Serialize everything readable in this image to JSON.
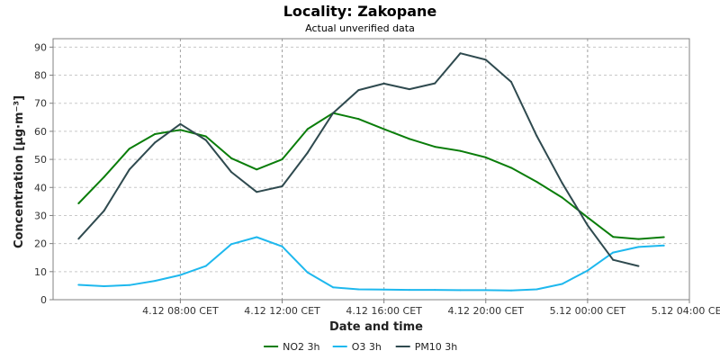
{
  "chart_data": {
    "type": "line",
    "title": "Locality: Zakopane",
    "subtitle": "Actual unverified data",
    "xlabel": "Date and time",
    "ylabel": "Concentration [µg·m⁻³]",
    "ylim": [
      0,
      93
    ],
    "yticks": [
      0,
      10,
      20,
      30,
      40,
      50,
      60,
      70,
      80,
      90
    ],
    "xlim": [
      "4.12 03:00 CET",
      "5.12 04:00 CET"
    ],
    "xticks": [
      {
        "hour": 8,
        "label": "4.12 08:00 CET"
      },
      {
        "hour": 12,
        "label": "4.12 12:00 CET"
      },
      {
        "hour": 16,
        "label": "4.12 16:00 CET"
      },
      {
        "hour": 20,
        "label": "4.12 20:00 CET"
      },
      {
        "hour": 24,
        "label": "5.12 00:00 CET"
      },
      {
        "hour": 28,
        "label": "5.12 04:00 CET"
      }
    ],
    "grid": true,
    "legend_position": "bottom",
    "series": [
      {
        "name": "NO2 3h",
        "color": "#0a7d0a",
        "points": [
          {
            "hour": 4,
            "value": 34.3
          },
          {
            "hour": 5,
            "value": 43.7
          },
          {
            "hour": 6,
            "value": 53.8
          },
          {
            "hour": 7,
            "value": 59
          },
          {
            "hour": 8,
            "value": 60.5
          },
          {
            "hour": 9,
            "value": 58.2
          },
          {
            "hour": 10,
            "value": 50.4
          },
          {
            "hour": 11,
            "value": 46.4
          },
          {
            "hour": 12,
            "value": 50
          },
          {
            "hour": 13,
            "value": 60.8
          },
          {
            "hour": 14,
            "value": 66.5
          },
          {
            "hour": 15,
            "value": 64.4
          },
          {
            "hour": 16,
            "value": 60.8
          },
          {
            "hour": 17,
            "value": 57.3
          },
          {
            "hour": 18,
            "value": 54.5
          },
          {
            "hour": 19,
            "value": 53
          },
          {
            "hour": 20,
            "value": 50.7
          },
          {
            "hour": 21,
            "value": 47
          },
          {
            "hour": 22,
            "value": 42
          },
          {
            "hour": 23,
            "value": 36.4
          },
          {
            "hour": 24,
            "value": 29.3
          },
          {
            "hour": 25,
            "value": 22.4
          },
          {
            "hour": 26,
            "value": 21.6
          },
          {
            "hour": 27,
            "value": 22.3
          }
        ]
      },
      {
        "name": "O3 3h",
        "color": "#1eb8ee",
        "points": [
          {
            "hour": 4,
            "value": 5.3
          },
          {
            "hour": 5,
            "value": 4.8
          },
          {
            "hour": 6,
            "value": 5.2
          },
          {
            "hour": 7,
            "value": 6.7
          },
          {
            "hour": 8,
            "value": 8.8
          },
          {
            "hour": 9,
            "value": 12
          },
          {
            "hour": 10,
            "value": 19.8
          },
          {
            "hour": 11,
            "value": 22.3
          },
          {
            "hour": 12,
            "value": 19
          },
          {
            "hour": 13,
            "value": 9.7
          },
          {
            "hour": 14,
            "value": 4.4
          },
          {
            "hour": 15,
            "value": 3.7
          },
          {
            "hour": 16,
            "value": 3.6
          },
          {
            "hour": 17,
            "value": 3.5
          },
          {
            "hour": 18,
            "value": 3.5
          },
          {
            "hour": 19,
            "value": 3.4
          },
          {
            "hour": 20,
            "value": 3.4
          },
          {
            "hour": 21,
            "value": 3.3
          },
          {
            "hour": 22,
            "value": 3.7
          },
          {
            "hour": 23,
            "value": 5.6
          },
          {
            "hour": 24,
            "value": 10.4
          },
          {
            "hour": 25,
            "value": 16.8
          },
          {
            "hour": 26,
            "value": 18.8
          },
          {
            "hour": 27,
            "value": 19.3
          }
        ]
      },
      {
        "name": "PM10 3h",
        "color": "#2f4a4f",
        "points": [
          {
            "hour": 4,
            "value": 21.7
          },
          {
            "hour": 5,
            "value": 31.7
          },
          {
            "hour": 6,
            "value": 46.4
          },
          {
            "hour": 7,
            "value": 56
          },
          {
            "hour": 8,
            "value": 62.6
          },
          {
            "hour": 9,
            "value": 56.9
          },
          {
            "hour": 10,
            "value": 45.5
          },
          {
            "hour": 11,
            "value": 38.4
          },
          {
            "hour": 12,
            "value": 40.4
          },
          {
            "hour": 13,
            "value": 52.4
          },
          {
            "hour": 14,
            "value": 66.5
          },
          {
            "hour": 15,
            "value": 74.7
          },
          {
            "hour": 16,
            "value": 77
          },
          {
            "hour": 17,
            "value": 75
          },
          {
            "hour": 18,
            "value": 77.1
          },
          {
            "hour": 19,
            "value": 87.8
          },
          {
            "hour": 20,
            "value": 85.5
          },
          {
            "hour": 21,
            "value": 77.6
          },
          {
            "hour": 22,
            "value": 58.4
          },
          {
            "hour": 23,
            "value": 41.6
          },
          {
            "hour": 24,
            "value": 26.5
          },
          {
            "hour": 25,
            "value": 14.2
          },
          {
            "hour": 26,
            "value": 12
          }
        ]
      }
    ]
  }
}
